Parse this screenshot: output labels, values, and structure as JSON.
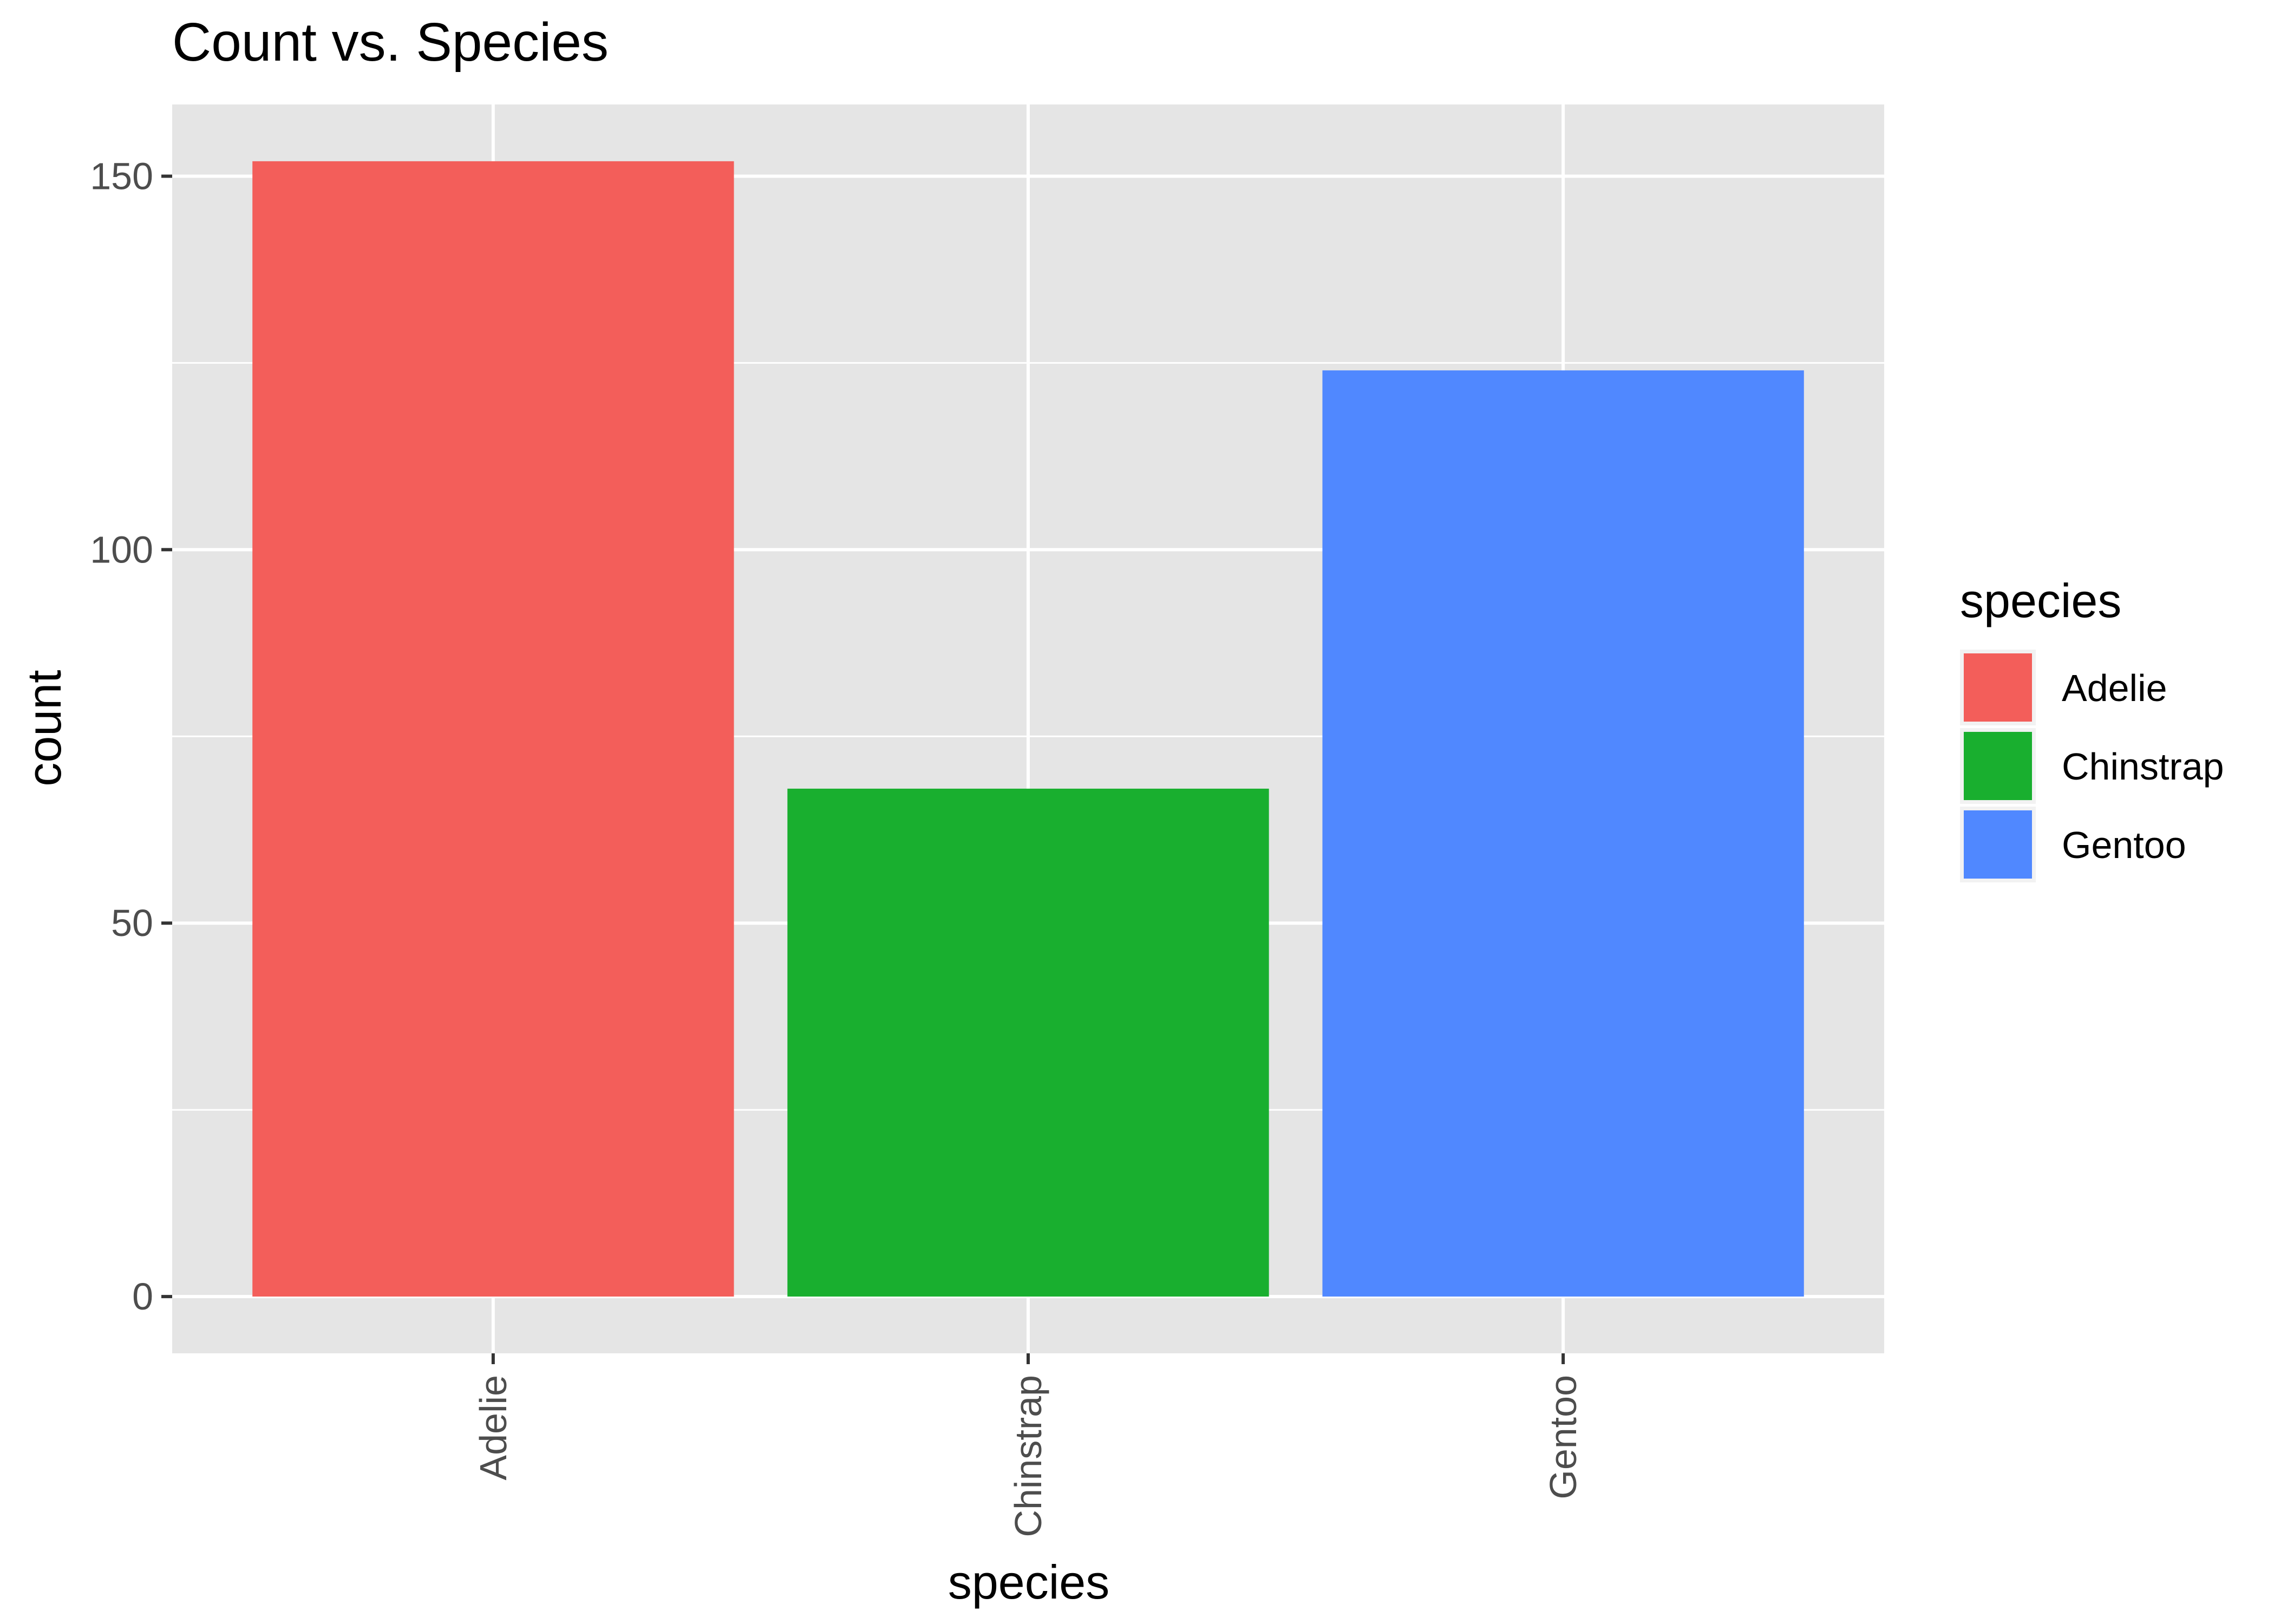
{
  "chart_data": {
    "type": "bar",
    "title": "Count vs. Species",
    "xlabel": "species",
    "ylabel": "count",
    "categories": [
      "Adelie",
      "Chinstrap",
      "Gentoo"
    ],
    "values": [
      152,
      68,
      124
    ],
    "ylim": [
      -7.6,
      159.6
    ],
    "yticks": [
      0,
      50,
      100,
      150
    ],
    "colors": [
      "#F35E5A",
      "#19AF2F",
      "#5088FF"
    ],
    "grid": true,
    "panel_background": "#E5E5E5",
    "legend": {
      "title": "species",
      "position": "right",
      "items": [
        "Adelie",
        "Chinstrap",
        "Gentoo"
      ]
    }
  }
}
